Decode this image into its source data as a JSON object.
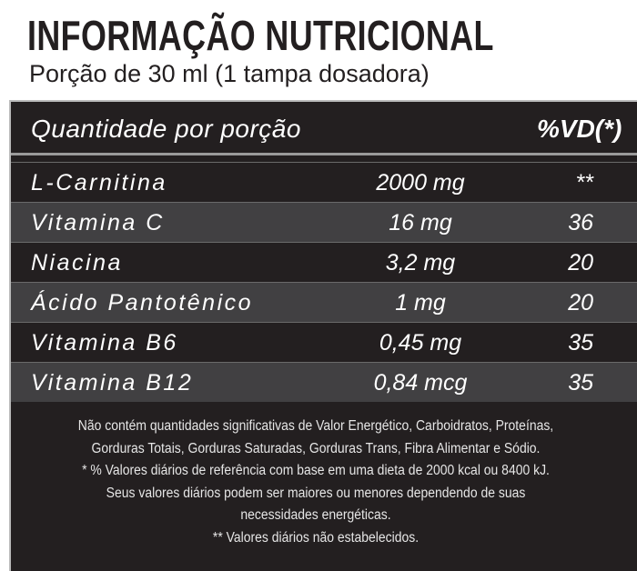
{
  "header": {
    "title": "INFORMAÇÃO NUTRICIONAL",
    "subtitle": "Porção de 30 ml (1 tampa dosadora)"
  },
  "table": {
    "columns": [
      "Quantidade por porção",
      "%VD(*)"
    ],
    "rows": [
      [
        "L-Carnitina",
        "2000 mg",
        "**"
      ],
      [
        "Vitamina C",
        "16 mg",
        "36"
      ],
      [
        "Niacina",
        "3,2 mg",
        "20"
      ],
      [
        "Ácido Pantotênico",
        "1 mg",
        "20"
      ],
      [
        "Vitamina B6",
        "0,45 mg",
        "35"
      ],
      [
        "Vitamina B12",
        "0,84 mcg",
        "35"
      ]
    ]
  },
  "footnotes": [
    "Não contém quantidades significativas de Valor Energético, Carboidratos, Proteínas,",
    "Gorduras Totais, Gorduras Saturadas, Gorduras Trans, Fibra Alimentar e Sódio.",
    "* % Valores diários de referência com base em uma dieta de 2000 kcal ou 8400 kJ.",
    "Seus valores diários podem ser maiores ou menores dependendo de suas",
    "necessidades energéticas.",
    "** Valores diários não estabelecidos."
  ]
}
